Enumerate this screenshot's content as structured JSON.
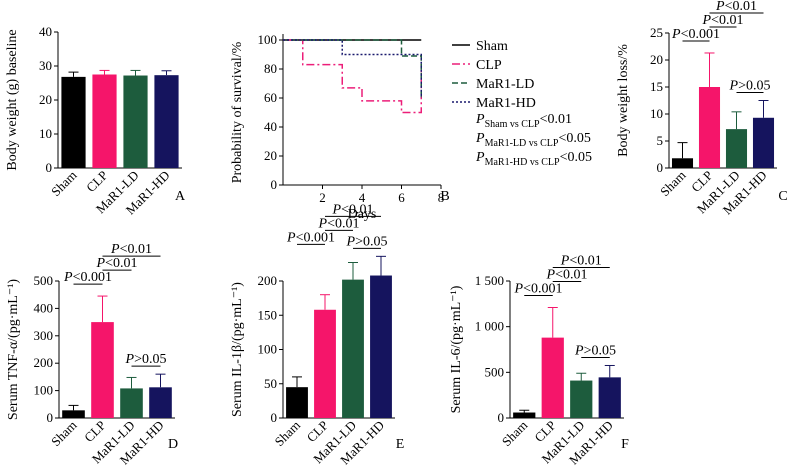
{
  "chart_data": [
    {
      "id": "A",
      "type": "bar",
      "panel_label": "A",
      "ylabel": "Body weight (g) baseline",
      "categories": [
        "Sham",
        "CLP",
        "MaR1-LD",
        "MaR1-HD"
      ],
      "values": [
        26.8,
        27.5,
        27.2,
        27.3
      ],
      "errors": [
        1.4,
        1.2,
        1.5,
        1.3
      ],
      "ylim": [
        0,
        40
      ],
      "yticks": [
        "0",
        "10",
        "20",
        "30",
        "40"
      ],
      "ytick_values": [
        0,
        10,
        20,
        30,
        40
      ],
      "comparisons": []
    },
    {
      "id": "B",
      "type": "line",
      "panel_label": "B",
      "xlabel": "Days",
      "ylabel": "Probability of survival/%",
      "xlim": [
        0,
        8
      ],
      "ylim": [
        0,
        100
      ],
      "xticks": [
        "2",
        "4",
        "6",
        "8"
      ],
      "xtick_values": [
        2,
        4,
        6,
        8
      ],
      "yticks": [
        "0",
        "20",
        "40",
        "60",
        "80",
        "100"
      ],
      "ytick_values": [
        0,
        20,
        40,
        60,
        80,
        100
      ],
      "series": [
        {
          "name": "Sham",
          "color": "#000000",
          "dash": "none",
          "points": [
            [
              0,
              100
            ],
            [
              7,
              100
            ]
          ]
        },
        {
          "name": "CLP",
          "color": "#ec1e79",
          "dash": "8,3,2,3",
          "points": [
            [
              0,
              100
            ],
            [
              1,
              100
            ],
            [
              1,
              83
            ],
            [
              3,
              83
            ],
            [
              3,
              67
            ],
            [
              4,
              67
            ],
            [
              4,
              58
            ],
            [
              6,
              58
            ],
            [
              6,
              50
            ],
            [
              7,
              50
            ],
            [
              7,
              83
            ]
          ]
        },
        {
          "name": "MaR1-LD",
          "color": "#1d5c3d",
          "dash": "6,3",
          "points": [
            [
              0,
              100
            ],
            [
              6,
              100
            ],
            [
              6,
              89
            ],
            [
              7,
              89
            ],
            [
              7,
              60
            ]
          ]
        },
        {
          "name": "MaR1-HD",
          "color": "#1a1a6e",
          "dash": "2,2",
          "points": [
            [
              0,
              100
            ],
            [
              3,
              100
            ],
            [
              3,
              90
            ],
            [
              7,
              90
            ],
            [
              7,
              60
            ]
          ]
        }
      ],
      "stats": [
        {
          "p": "P",
          "sub": "Sham vs CLP",
          "val": "<0.01"
        },
        {
          "p": "P",
          "sub": "MaR1-LD vs CLP",
          "val": "<0.05"
        },
        {
          "p": "P",
          "sub": "MaR1-HD vs CLP",
          "val": "<0.05"
        }
      ]
    },
    {
      "id": "C",
      "type": "bar",
      "panel_label": "C",
      "ylabel": "Body weight loss/%",
      "categories": [
        "Sham",
        "CLP",
        "MaR1-LD",
        "MaR1-HD"
      ],
      "values": [
        1.8,
        15.0,
        7.2,
        9.3
      ],
      "errors": [
        2.9,
        6.3,
        3.2,
        3.2
      ],
      "ylim": [
        0,
        25
      ],
      "yticks": [
        "0",
        "5",
        "10",
        "15",
        "20",
        "25"
      ],
      "ytick_values": [
        0,
        5,
        10,
        15,
        20,
        25
      ],
      "comparisons": [
        {
          "label": "P<0.01",
          "from": 1,
          "to": 3
        },
        {
          "label": "P<0.01",
          "from": 1,
          "to": 2
        },
        {
          "label": "P<0.001",
          "from": 0,
          "to": 1
        },
        {
          "label": ">0.05",
          "from": 2,
          "to": 3
        }
      ]
    },
    {
      "id": "D",
      "type": "bar",
      "panel_label": "D",
      "ylabel": "Serum TNF-α/(pg·mL⁻¹)",
      "categories": [
        "Sham",
        "CLP",
        "MaR1-LD",
        "MaR1-HD"
      ],
      "values": [
        28,
        350,
        108,
        112
      ],
      "errors": [
        18,
        95,
        40,
        48
      ],
      "ylim": [
        0,
        500
      ],
      "yticks": [
        "0",
        "100",
        "200",
        "300",
        "400",
        "500"
      ],
      "ytick_values": [
        0,
        100,
        200,
        300,
        400,
        500
      ],
      "comparisons": [
        {
          "label": "P<0.01",
          "from": 1,
          "to": 3
        },
        {
          "label": "P<0.01",
          "from": 1,
          "to": 2
        },
        {
          "label": "P<0.001",
          "from": 0,
          "to": 1
        },
        {
          "label": ">0.05",
          "from": 2,
          "to": 3
        }
      ]
    },
    {
      "id": "E",
      "type": "bar",
      "panel_label": "E",
      "ylabel": "Serum IL-1β/(pg·mL⁻¹)",
      "categories": [
        "Sham",
        "CLP",
        "MaR1-LD",
        "MaR1-HD"
      ],
      "values": [
        45,
        158,
        202,
        208
      ],
      "errors": [
        15,
        22,
        25,
        28
      ],
      "ylim": [
        0,
        200
      ],
      "yticks": [
        "0",
        "50",
        "100",
        "150",
        "200"
      ],
      "ytick_values": [
        0,
        50,
        100,
        150,
        200
      ],
      "comparisons": [
        {
          "label": "P<0.01",
          "from": 1,
          "to": 3
        },
        {
          "label": "P<0.01",
          "from": 1,
          "to": 2
        },
        {
          "label": "P<0.001",
          "from": 0,
          "to": 1
        },
        {
          "label": ">0.05",
          "from": 2,
          "to": 3
        }
      ]
    },
    {
      "id": "F",
      "type": "bar",
      "panel_label": "F",
      "ylabel": "Serum IL-6/(pg·mL⁻¹)",
      "categories": [
        "Sham",
        "CLP",
        "MaR1-LD",
        "MaR1-HD"
      ],
      "values": [
        60,
        880,
        410,
        445
      ],
      "errors": [
        25,
        330,
        80,
        130
      ],
      "ylim": [
        0,
        1500
      ],
      "yticks": [
        "0",
        "500",
        "1 000",
        "1 500"
      ],
      "ytick_values": [
        0,
        500,
        1000,
        1500
      ],
      "comparisons": [
        {
          "label": "P<0.01",
          "from": 1,
          "to": 3
        },
        {
          "label": "P<0.01",
          "from": 1,
          "to": 2
        },
        {
          "label": "P<0.001",
          "from": 0,
          "to": 1
        },
        {
          "label": ">0.05",
          "from": 2,
          "to": 3
        }
      ]
    }
  ],
  "colors": {
    "sham": "#000000",
    "clp": "#f5156a",
    "mar1_ld": "#1d5c3d",
    "mar1_hd": "#15145e"
  }
}
